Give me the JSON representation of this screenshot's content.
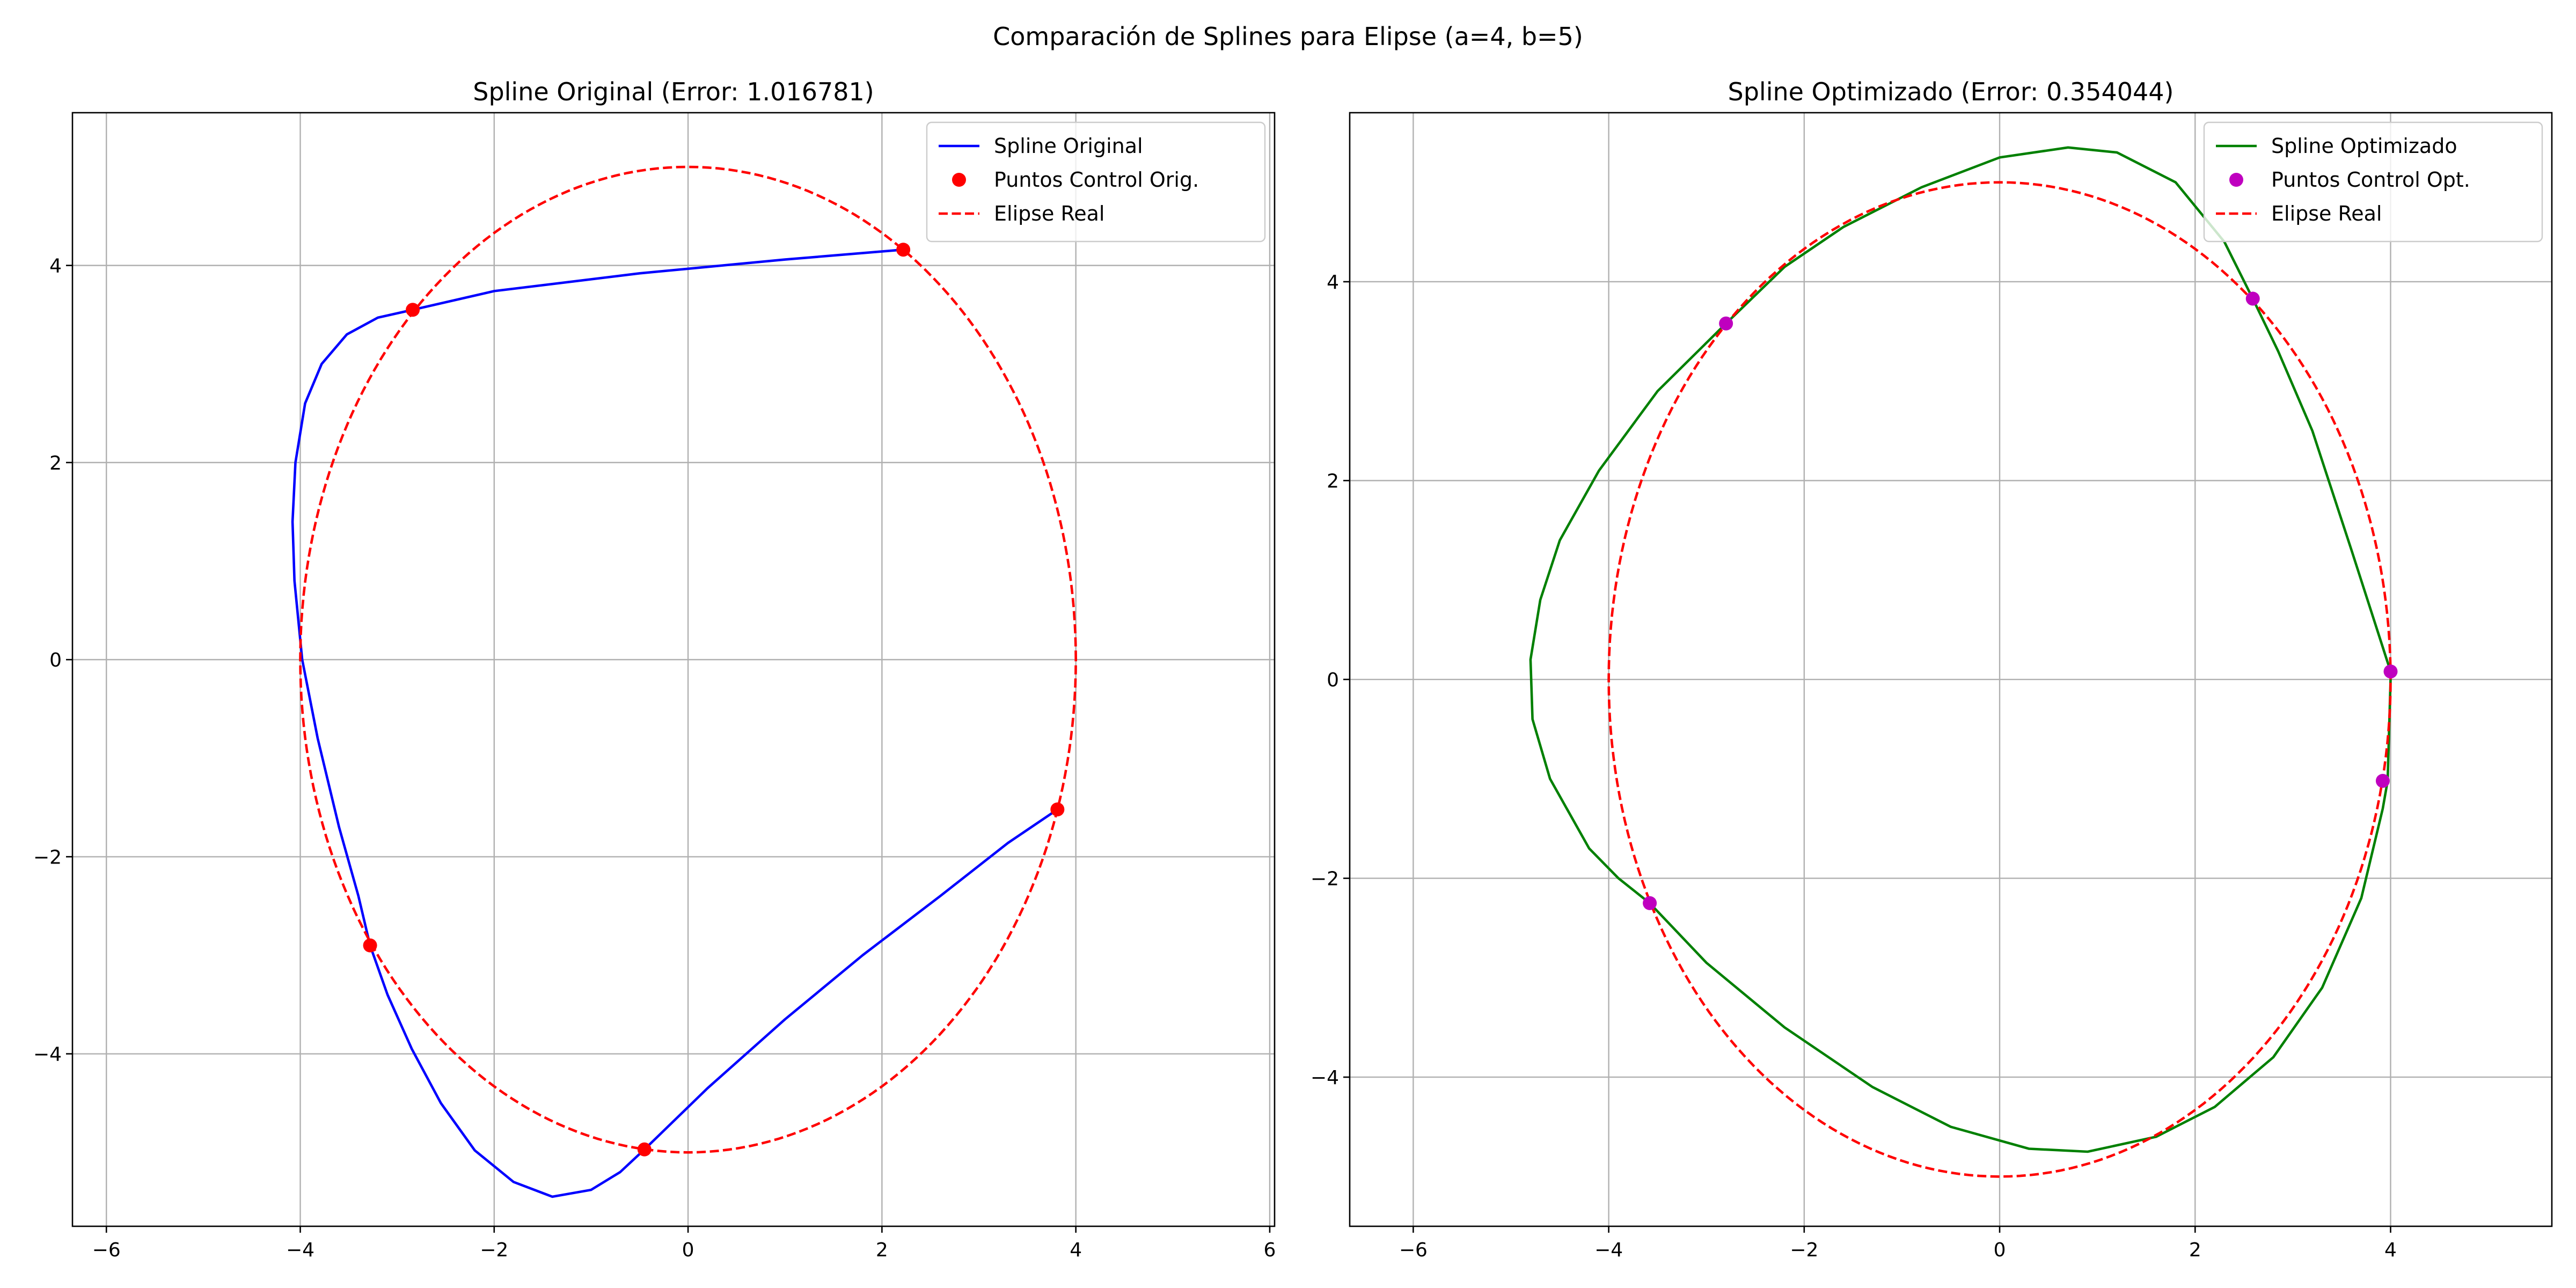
{
  "figure": {
    "suptitle": "Comparación de Splines para Elipse (a=4, b=5)"
  },
  "colors": {
    "original_spline": "#0000ff",
    "original_points": "#ff0000",
    "ellipse": "#ff0000",
    "optimized_spline": "#008000",
    "optimized_points": "#bf00bf",
    "grid": "#b0b0b0",
    "axes": "#000000"
  },
  "chart_data": [
    {
      "type": "line",
      "title": "Spline Original (Error: 1.016781)",
      "xlabel": "",
      "ylabel": "",
      "xlim": [
        -6.35,
        6.05
      ],
      "ylim": [
        -5.75,
        5.55
      ],
      "xticks": [
        -6,
        -4,
        -2,
        0,
        2,
        4,
        6
      ],
      "xtick_labels": [
        "−6",
        "−4",
        "−2",
        "0",
        "2",
        "4",
        "6"
      ],
      "yticks": [
        -4,
        -2,
        0,
        2,
        4
      ],
      "ytick_labels": [
        "−4",
        "−2",
        "0",
        "2",
        "4"
      ],
      "grid": true,
      "legend_position": "top-right",
      "series": [
        {
          "name": "Spline Original",
          "kind": "line",
          "color": "#0000ff",
          "style": "solid",
          "x": [
            2.22,
            1.0,
            -0.5,
            -2.0,
            -2.84,
            -3.2,
            -3.52,
            -3.78,
            -3.95,
            -4.05,
            -4.08,
            -4.06,
            -3.98,
            -3.82,
            -3.6,
            -3.4,
            -3.28,
            -3.1,
            -2.85,
            -2.55,
            -2.2,
            -1.8,
            -1.4,
            -1.0,
            -0.7,
            -0.45,
            0.2,
            1.0,
            1.8,
            2.6,
            3.3,
            3.81
          ],
          "y": [
            4.16,
            4.06,
            3.92,
            3.74,
            3.55,
            3.47,
            3.3,
            3.0,
            2.6,
            2.0,
            1.4,
            0.8,
            0.0,
            -0.8,
            -1.7,
            -2.4,
            -2.9,
            -3.4,
            -3.95,
            -4.5,
            -4.98,
            -5.3,
            -5.45,
            -5.38,
            -5.2,
            -4.97,
            -4.35,
            -3.65,
            -3.0,
            -2.4,
            -1.86,
            -1.52
          ]
        },
        {
          "name": "Puntos Control Orig.",
          "kind": "points",
          "color": "#ff0000",
          "x": [
            2.22,
            -2.84,
            -3.28,
            -0.45,
            3.81
          ],
          "y": [
            4.16,
            3.55,
            -2.9,
            -4.97,
            -1.52
          ]
        },
        {
          "name": "Elipse Real",
          "kind": "ellipse",
          "color": "#ff0000",
          "style": "dashed",
          "a": 4,
          "b": 5
        }
      ]
    },
    {
      "type": "line",
      "title": "Spline Optimizado (Error: 0.354044)",
      "xlabel": "",
      "ylabel": "",
      "xlim": [
        -6.65,
        5.65
      ],
      "ylim": [
        -5.5,
        5.7
      ],
      "xticks": [
        -6,
        -4,
        -2,
        0,
        2,
        4
      ],
      "xtick_labels": [
        "−6",
        "−4",
        "−2",
        "0",
        "2",
        "4"
      ],
      "yticks": [
        -4,
        -2,
        0,
        2,
        4
      ],
      "ytick_labels": [
        "−4",
        "−2",
        "0",
        "2",
        "4"
      ],
      "grid": true,
      "legend_position": "top-right",
      "series": [
        {
          "name": "Spline Optimizado",
          "kind": "line",
          "color": "#008000",
          "style": "solid",
          "x": [
            4.0,
            3.6,
            3.2,
            2.85,
            2.59,
            2.3,
            1.8,
            1.2,
            0.7,
            0.0,
            -0.8,
            -1.6,
            -2.2,
            -2.8,
            -3.5,
            -4.1,
            -4.5,
            -4.7,
            -4.8,
            -4.78,
            -4.6,
            -4.2,
            -3.9,
            -3.58,
            -3.0,
            -2.2,
            -1.3,
            -0.5,
            0.3,
            0.9,
            1.6,
            2.2,
            2.8,
            3.3,
            3.7,
            3.92,
            3.97,
            4.0
          ],
          "y": [
            0.08,
            1.3,
            2.5,
            3.3,
            3.83,
            4.4,
            5.0,
            5.3,
            5.35,
            5.25,
            4.95,
            4.55,
            4.15,
            3.58,
            2.9,
            2.1,
            1.4,
            0.8,
            0.2,
            -0.4,
            -1.0,
            -1.7,
            -2.0,
            -2.25,
            -2.85,
            -3.5,
            -4.1,
            -4.5,
            -4.72,
            -4.75,
            -4.6,
            -4.3,
            -3.8,
            -3.1,
            -2.2,
            -1.3,
            -1.02,
            0.0
          ]
        },
        {
          "name": "Puntos Control Opt.",
          "kind": "points",
          "color": "#bf00bf",
          "x": [
            -2.8,
            2.59,
            4.0,
            3.92,
            -3.58
          ],
          "y": [
            3.58,
            3.83,
            0.08,
            -1.02,
            -2.25
          ]
        },
        {
          "name": "Elipse Real",
          "kind": "ellipse",
          "color": "#ff0000",
          "style": "dashed",
          "a": 4,
          "b": 5
        }
      ]
    }
  ]
}
